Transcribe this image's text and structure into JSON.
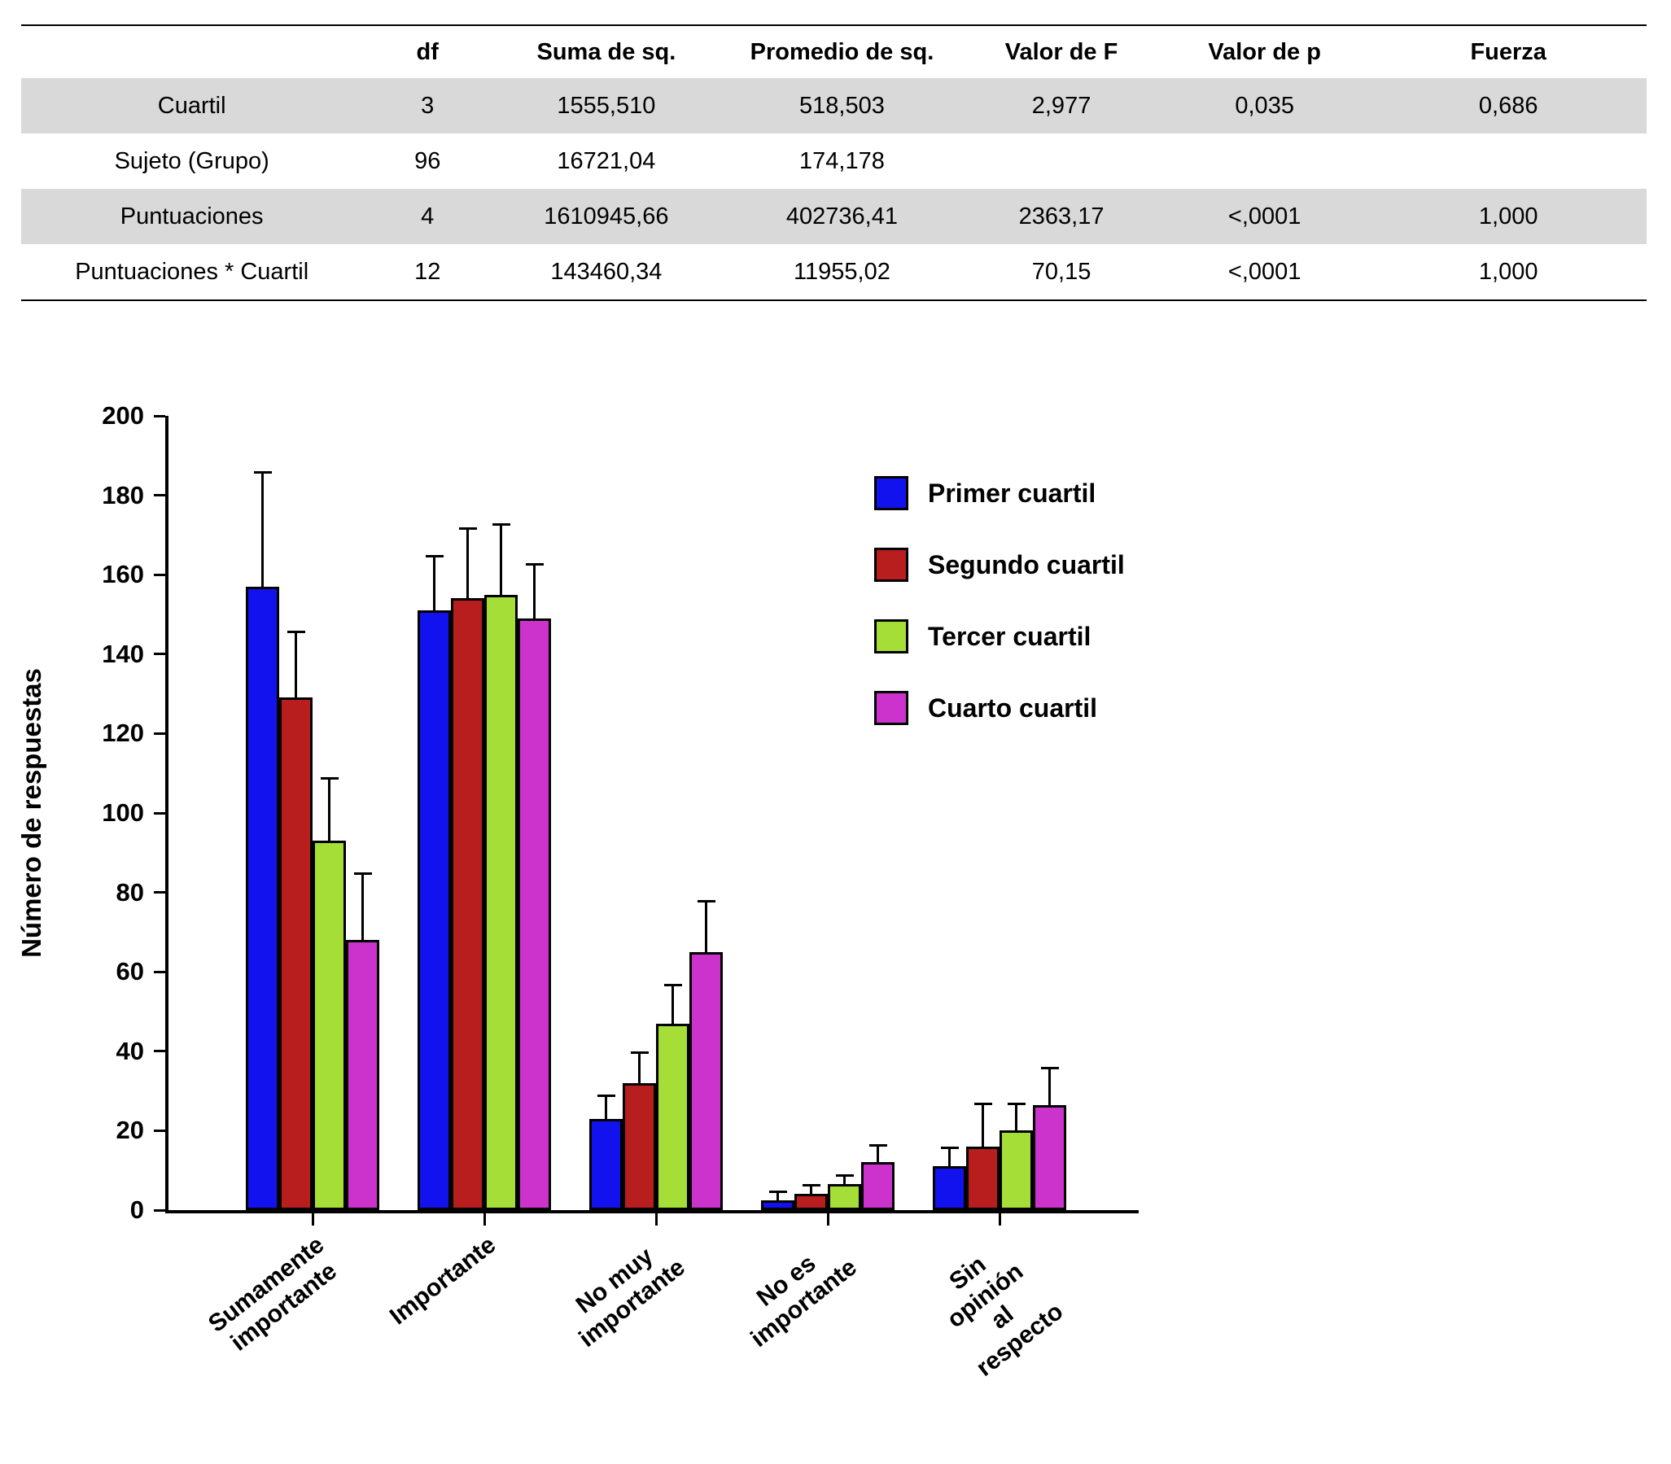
{
  "table": {
    "headers": [
      "",
      "df",
      "Suma de sq.",
      "Promedio de sq.",
      "Valor de F",
      "Valor de p",
      "Fuerza"
    ],
    "rows": [
      {
        "label": "Cuartil",
        "values": [
          "3",
          "1555,510",
          "518,503",
          "2,977",
          "0,035",
          "0,686"
        ],
        "shaded": true
      },
      {
        "label": "Sujeto (Grupo)",
        "values": [
          "96",
          "16721,04",
          "174,178",
          "",
          "",
          ""
        ],
        "shaded": false
      },
      {
        "label": "Puntuaciones",
        "values": [
          "4",
          "1610945,66",
          "402736,41",
          "2363,17",
          "<,0001",
          "1,000"
        ],
        "shaded": true
      },
      {
        "label": "Puntuaciones * Cuartil",
        "values": [
          "12",
          "143460,34",
          "11955,02",
          "70,15",
          "<,0001",
          "1,000"
        ],
        "shaded": false
      }
    ]
  },
  "chart_data": {
    "type": "bar",
    "title": "",
    "xlabel": "",
    "ylabel": "Número de respuestas",
    "ylim": [
      0,
      200
    ],
    "ytick_step": 20,
    "grid": false,
    "legend_position": "upper right inside",
    "categories": [
      "Sumamente\nimportante",
      "Importante",
      "No muy importante",
      "No es importante",
      "Sin opinión al respecto"
    ],
    "series": [
      {
        "name": "Primer cuartil",
        "color": "#1212EE",
        "values": [
          157,
          151,
          23,
          2.5,
          11
        ],
        "errors": [
          29,
          14,
          6,
          2.5,
          5
        ]
      },
      {
        "name": "Segundo cuartil",
        "color": "#B81E1E",
        "values": [
          129,
          154,
          32,
          4,
          16
        ],
        "errors": [
          17,
          18,
          8,
          2.5,
          11
        ]
      },
      {
        "name": "Tercer cuartil",
        "color": "#A5DE37",
        "values": [
          93,
          155,
          47,
          6.5,
          20
        ],
        "errors": [
          16,
          18,
          10,
          2.5,
          7
        ]
      },
      {
        "name": "Cuarto cuartil",
        "color": "#CC33CC",
        "values": [
          68,
          149,
          65,
          12,
          26.5
        ],
        "errors": [
          17,
          14,
          13,
          4.5,
          9.5
        ]
      }
    ]
  }
}
